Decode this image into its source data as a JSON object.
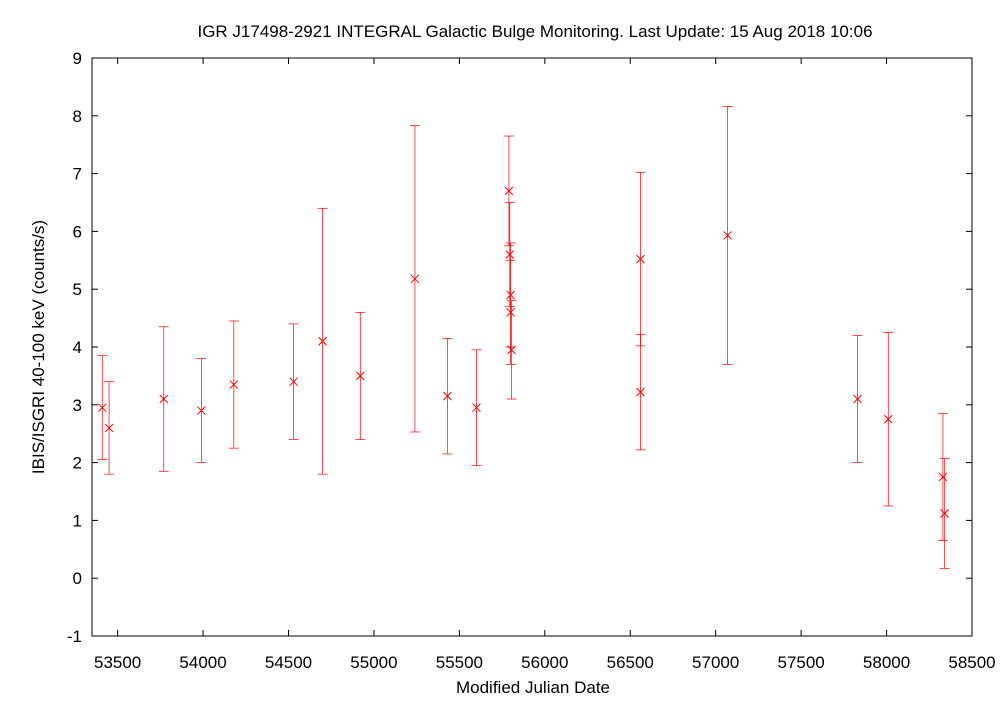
{
  "chart_data": {
    "type": "scatter",
    "title": "IGR J17498-2921   INTEGRAL Galactic Bulge Monitoring.  Last Update: 15 Aug 2018 10:06",
    "xlabel": "Modified Julian Date",
    "ylabel": "IBIS/ISGRI 40-100 keV (counts/s)",
    "xlim": [
      53350,
      58500
    ],
    "ylim": [
      -1,
      9
    ],
    "x_ticks": [
      "53500",
      "54000",
      "54500",
      "55000",
      "55500",
      "56000",
      "56500",
      "57000",
      "57500",
      "58000",
      "58500"
    ],
    "y_ticks": [
      "-1",
      "0",
      "1",
      "2",
      "3",
      "4",
      "5",
      "6",
      "7",
      "8",
      "9"
    ],
    "x_tick_values": [
      53500,
      54000,
      54500,
      55000,
      55500,
      56000,
      56500,
      57000,
      57500,
      58000,
      58500
    ],
    "y_tick_values": [
      -1,
      0,
      1,
      2,
      3,
      4,
      5,
      6,
      7,
      8,
      9
    ],
    "grid": false,
    "series": [
      {
        "color": "#ff0000",
        "marker": "x",
        "points": [
          {
            "x": 53410,
            "y": 2.95,
            "err": 0.9
          },
          {
            "x": 53450,
            "y": 2.6,
            "err": 0.8
          },
          {
            "x": 53770,
            "y": 3.1,
            "err": 1.25
          },
          {
            "x": 53990,
            "y": 2.9,
            "err": 0.9
          },
          {
            "x": 54180,
            "y": 3.35,
            "err": 1.1
          },
          {
            "x": 54530,
            "y": 3.4,
            "err": 1.0
          },
          {
            "x": 54700,
            "y": 4.1,
            "err": 2.3
          },
          {
            "x": 54920,
            "y": 3.5,
            "err": 1.1
          },
          {
            "x": 55240,
            "y": 5.18,
            "err": 2.65
          },
          {
            "x": 55430,
            "y": 3.15,
            "err": 1.0
          },
          {
            "x": 55600,
            "y": 2.95,
            "err": 1.0
          },
          {
            "x": 55790,
            "y": 6.7,
            "err": 0.95
          },
          {
            "x": 55795,
            "y": 5.6,
            "err": 0.9
          },
          {
            "x": 55800,
            "y": 4.9,
            "err": 0.9
          },
          {
            "x": 55800,
            "y": 4.6,
            "err": 0.9
          },
          {
            "x": 55805,
            "y": 3.95,
            "err": 0.85
          },
          {
            "x": 56560,
            "y": 5.52,
            "err": 1.5
          },
          {
            "x": 56560,
            "y": 3.22,
            "err": 1.0
          },
          {
            "x": 57070,
            "y": 5.93,
            "err": 2.23
          },
          {
            "x": 57830,
            "y": 3.1,
            "err": 1.1
          },
          {
            "x": 58010,
            "y": 2.75,
            "err": 1.5
          },
          {
            "x": 58330,
            "y": 1.75,
            "err": 1.1
          },
          {
            "x": 58340,
            "y": 1.12,
            "err": 0.95
          }
        ]
      }
    ]
  }
}
